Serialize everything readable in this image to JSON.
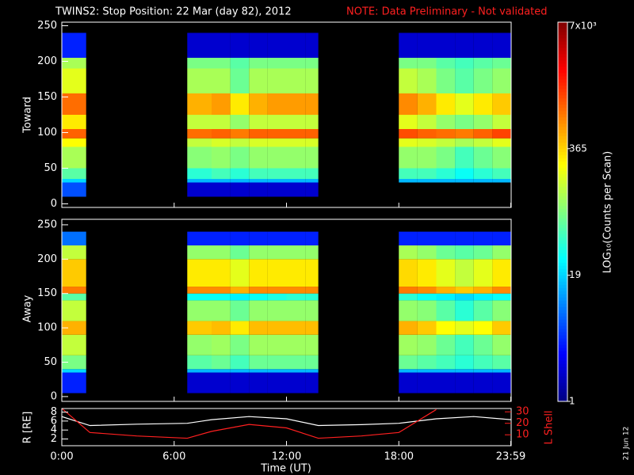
{
  "chart_data": [
    {
      "type": "heatmap",
      "title": "TWINS2: Stop Position: 22 Mar (day  82), 2012",
      "note": "NOTE: Data Preliminary - Not validated",
      "y_label": "Toward",
      "ylim": [
        -5,
        255
      ],
      "yticks": [
        0,
        50,
        100,
        150,
        200,
        250
      ],
      "x_bins": [
        0,
        1.3,
        6.7,
        8,
        9,
        10,
        11,
        12,
        13,
        13.7,
        18,
        19,
        20,
        21,
        22,
        23,
        24
      ],
      "y_bins": [
        10,
        30,
        35,
        50,
        80,
        92,
        105,
        125,
        155,
        190,
        205,
        240
      ],
      "z": [
        [
          6,
          null,
          2,
          2,
          2,
          2,
          2,
          2,
          2,
          null,
          null,
          null,
          null,
          null,
          null,
          null
        ],
        [
          20,
          null,
          15,
          15,
          15,
          15,
          15,
          15,
          15,
          null,
          15,
          15,
          15,
          15,
          15,
          15
        ],
        [
          60,
          null,
          40,
          50,
          40,
          50,
          50,
          50,
          50,
          null,
          50,
          50,
          40,
          30,
          40,
          50
        ],
        [
          120,
          null,
          90,
          100,
          80,
          100,
          100,
          100,
          100,
          null,
          100,
          100,
          80,
          50,
          70,
          90
        ],
        [
          250,
          null,
          150,
          180,
          150,
          180,
          180,
          180,
          180,
          null,
          200,
          180,
          150,
          120,
          150,
          200
        ],
        [
          1000,
          null,
          900,
          1000,
          800,
          1000,
          1000,
          1000,
          1000,
          null,
          1200,
          1000,
          900,
          800,
          1000,
          1300
        ],
        [
          300,
          null,
          150,
          150,
          100,
          150,
          150,
          150,
          150,
          null,
          200,
          150,
          100,
          80,
          100,
          150
        ],
        [
          900,
          null,
          500,
          600,
          300,
          500,
          600,
          600,
          600,
          null,
          700,
          500,
          300,
          200,
          300,
          400
        ],
        [
          200,
          null,
          120,
          120,
          70,
          120,
          120,
          120,
          120,
          null,
          150,
          120,
          80,
          60,
          80,
          100
        ],
        [
          120,
          null,
          80,
          80,
          60,
          80,
          80,
          80,
          80,
          null,
          80,
          80,
          60,
          50,
          60,
          70
        ],
        [
          4,
          null,
          2,
          2,
          2,
          2,
          2,
          2,
          2,
          null,
          2,
          2,
          2,
          2,
          2,
          2
        ]
      ],
      "z_label": "LOG₁₀(Counts per Scan)",
      "zlim": [
        1,
        7000
      ],
      "z_log": true,
      "zticks": [
        1,
        19,
        365,
        {
          "value": 7000,
          "label": "7x10³"
        }
      ]
    },
    {
      "type": "heatmap",
      "y_label": "Away",
      "ylim": [
        -7,
        258
      ],
      "yticks": [
        0,
        50,
        100,
        150,
        200,
        250
      ],
      "x_bins": [
        0,
        1.3,
        6.7,
        8,
        9,
        10,
        11,
        12,
        13,
        13.7,
        18,
        19,
        20,
        21,
        22,
        23,
        24
      ],
      "y_bins": [
        5,
        35,
        40,
        60,
        90,
        110,
        140,
        150,
        160,
        200,
        220,
        240
      ],
      "z": [
        [
          4,
          null,
          2,
          2,
          2,
          2,
          2,
          2,
          2,
          null,
          2,
          2,
          2,
          2,
          2,
          2
        ],
        [
          20,
          null,
          15,
          15,
          15,
          15,
          15,
          15,
          15,
          null,
          15,
          15,
          15,
          15,
          15,
          15
        ],
        [
          80,
          null,
          60,
          70,
          50,
          70,
          70,
          70,
          70,
          null,
          70,
          60,
          50,
          40,
          50,
          60
        ],
        [
          150,
          null,
          100,
          110,
          80,
          110,
          110,
          110,
          110,
          null,
          110,
          100,
          70,
          50,
          70,
          100
        ],
        [
          500,
          null,
          400,
          450,
          300,
          450,
          450,
          450,
          450,
          null,
          500,
          400,
          250,
          200,
          250,
          400
        ],
        [
          150,
          null,
          100,
          100,
          70,
          100,
          100,
          100,
          100,
          null,
          100,
          90,
          60,
          40,
          60,
          90
        ],
        [
          60,
          null,
          30,
          30,
          25,
          30,
          35,
          40,
          40,
          null,
          40,
          30,
          25,
          20,
          25,
          30
        ],
        [
          800,
          null,
          700,
          700,
          500,
          700,
          700,
          700,
          700,
          null,
          800,
          700,
          500,
          400,
          500,
          700
        ],
        [
          400,
          null,
          300,
          300,
          200,
          300,
          300,
          300,
          300,
          null,
          350,
          300,
          200,
          150,
          200,
          300
        ],
        [
          150,
          null,
          100,
          100,
          70,
          100,
          100,
          100,
          100,
          null,
          120,
          100,
          70,
          60,
          70,
          100
        ],
        [
          8,
          null,
          4,
          4,
          4,
          4,
          4,
          4,
          4,
          null,
          4,
          4,
          4,
          4,
          4,
          4
        ]
      ]
    },
    {
      "type": "line",
      "x_label": "Time (UT)",
      "y_label": "R [RE]",
      "y2_label": "L Shell",
      "annotation": "21 Jun 12",
      "xlim": [
        0,
        24
      ],
      "xticks": [
        {
          "value": 0,
          "label": "0:00"
        },
        {
          "value": 6,
          "label": "6:00"
        },
        {
          "value": 12,
          "label": "12:00"
        },
        {
          "value": 18,
          "label": "18:00"
        },
        {
          "value": 23.98,
          "label": "23:59"
        }
      ],
      "ylim": [
        0.5,
        8.8
      ],
      "yticks": [
        2,
        4,
        6,
        8
      ],
      "y2lim": [
        0.5,
        32.9
      ],
      "y2ticks": [
        10,
        20,
        30
      ],
      "x": [
        0,
        1.5,
        4,
        6.7,
        8,
        10,
        12,
        13.7,
        16,
        18,
        20,
        22,
        24
      ],
      "series": [
        {
          "color": "#ffffff",
          "values": [
            7,
            5,
            5.3,
            5.5,
            6.3,
            7,
            6.5,
            5,
            5.2,
            5.5,
            6.5,
            7,
            6.3
          ]
        },
        {
          "color": "#ff2020",
          "axis": "y2",
          "values": [
            33,
            12,
            9,
            7,
            13,
            19,
            16,
            7,
            9,
            12,
            32,
            null,
            null
          ]
        }
      ]
    }
  ]
}
